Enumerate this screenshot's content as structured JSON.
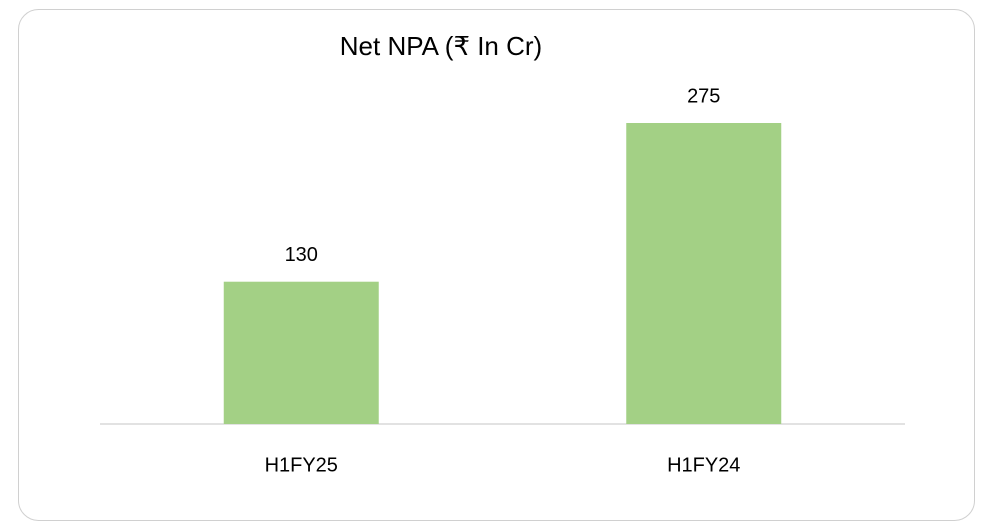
{
  "chart_data": {
    "type": "bar",
    "title": "Net NPA (₹ In Cr)",
    "categories": [
      "H1FY25",
      "H1FY24"
    ],
    "values": [
      130,
      275
    ],
    "color": "#a3d085"
  }
}
